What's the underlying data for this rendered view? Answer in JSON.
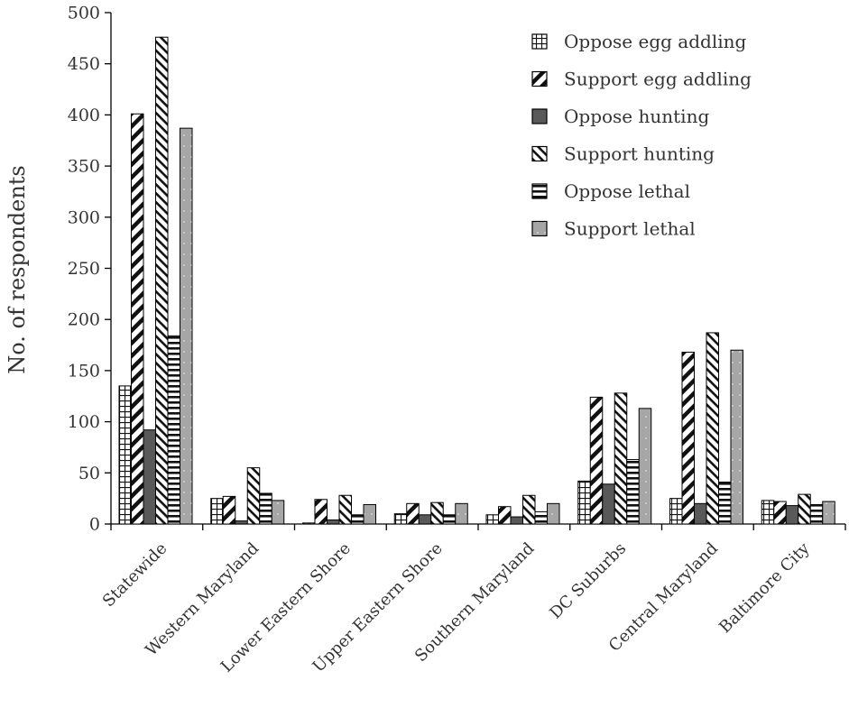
{
  "chart_data": {
    "type": "bar",
    "title": "",
    "xlabel": "",
    "ylabel": "No. of respondents",
    "ylim": [
      0,
      500
    ],
    "yticks": [
      0,
      50,
      100,
      150,
      200,
      250,
      300,
      350,
      400,
      450,
      500
    ],
    "grid": false,
    "legend_position": "top-right",
    "categories": [
      "Statewide",
      "Western Maryland",
      "Lower Eastern Shore",
      "Upper Eastern Shore",
      "Southern Maryland",
      "DC Suburbs",
      "Central Maryland",
      "Baltimore City"
    ],
    "series": [
      {
        "name": "Oppose egg addling",
        "pattern": "grid",
        "values": [
          135,
          25,
          1,
          10,
          9,
          42,
          25,
          23
        ]
      },
      {
        "name": "Support egg addling",
        "pattern": "diag-up",
        "values": [
          401,
          27,
          24,
          20,
          17,
          124,
          168,
          22
        ]
      },
      {
        "name": "Oppose hunting",
        "pattern": "solid-dark",
        "values": [
          92,
          3,
          4,
          9,
          7,
          39,
          20,
          18
        ]
      },
      {
        "name": "Support hunting",
        "pattern": "diag-down",
        "values": [
          476,
          55,
          28,
          21,
          28,
          128,
          187,
          29
        ]
      },
      {
        "name": "Oppose lethal",
        "pattern": "horizontal",
        "values": [
          184,
          30,
          9,
          9,
          12,
          63,
          41,
          19
        ]
      },
      {
        "name": "Support lethal",
        "pattern": "dotted-gray",
        "values": [
          387,
          23,
          19,
          20,
          20,
          113,
          170,
          22
        ]
      }
    ]
  }
}
